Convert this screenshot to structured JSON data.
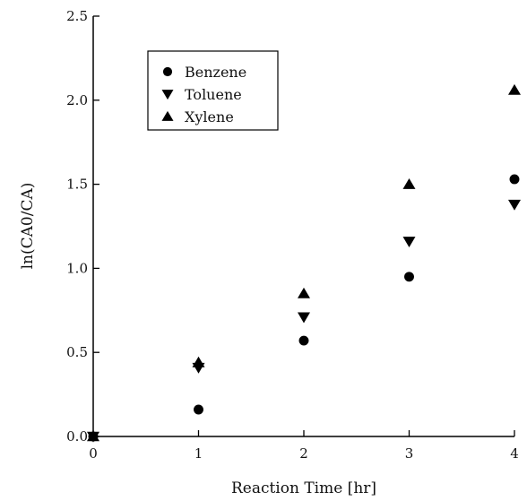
{
  "chart_data": {
    "type": "scatter",
    "xlabel": "Reaction Time [hr]",
    "ylabel": "ln(CA0/CA)",
    "xlim": [
      0,
      4
    ],
    "ylim": [
      0,
      2.5
    ],
    "xticks": [
      "0",
      "1",
      "2",
      "3",
      "4"
    ],
    "yticks": [
      "0.0",
      "0.5",
      "1.0",
      "1.5",
      "2.0",
      "2.5"
    ],
    "legend_position": "top-left",
    "grid": false,
    "series": [
      {
        "name": "Benzene",
        "marker": "circle",
        "color": "#000000",
        "x": [
          0,
          1,
          2,
          3,
          4
        ],
        "y": [
          0.0,
          0.16,
          0.57,
          0.95,
          1.53
        ]
      },
      {
        "name": "Toluene",
        "marker": "triangle-down",
        "color": "#000000",
        "x": [
          0,
          1,
          2,
          3,
          4
        ],
        "y": [
          0.0,
          0.41,
          0.71,
          1.16,
          1.38
        ]
      },
      {
        "name": "Xylene",
        "marker": "triangle-up",
        "color": "#000000",
        "x": [
          0,
          1,
          2,
          3,
          4
        ],
        "y": [
          0.0,
          0.44,
          0.85,
          1.5,
          2.06
        ]
      }
    ]
  }
}
